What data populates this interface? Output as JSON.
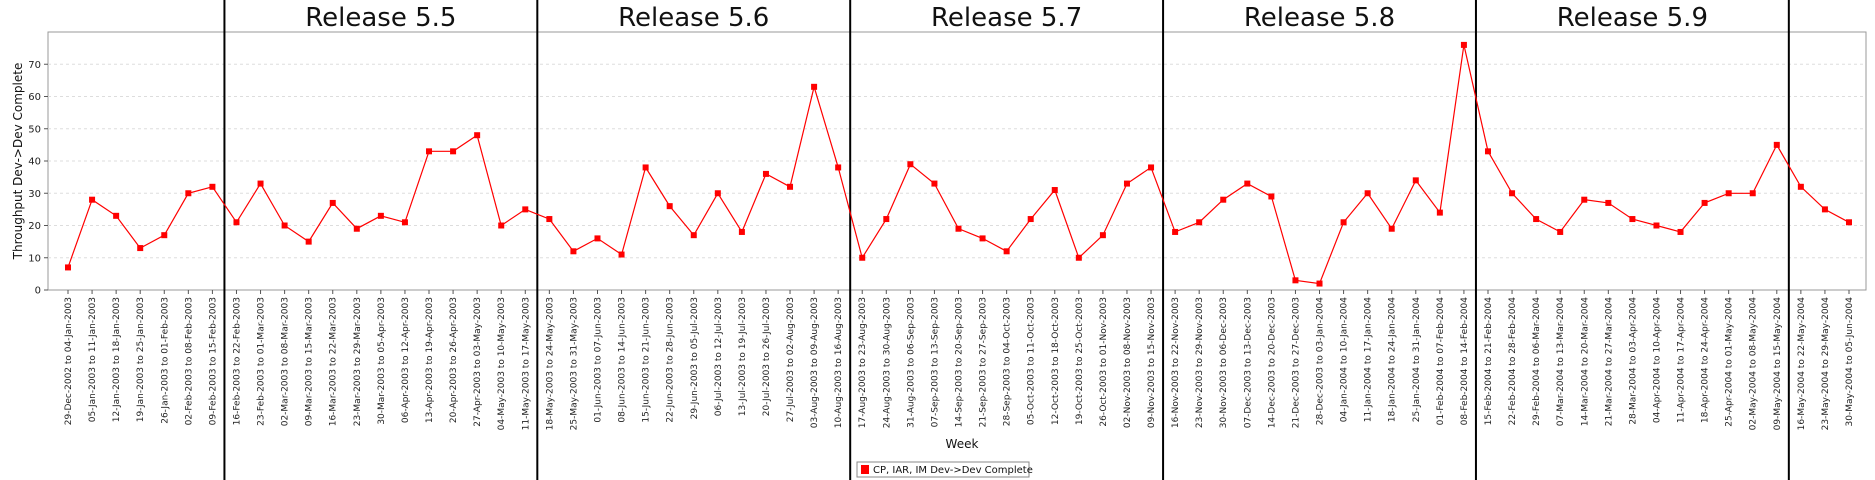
{
  "chart_data": {
    "type": "line",
    "ylabel": "Throughput Dev->Dev Complete",
    "xlabel": "Week",
    "ylim": [
      0,
      80
    ],
    "yticks": [
      0,
      10,
      20,
      30,
      40,
      50,
      60,
      70
    ],
    "grid": "horizontal dashed",
    "legend_position": "bottom-center",
    "colors": {
      "series": "#ff0000",
      "release_line": "#000000",
      "grid": "#dddddd"
    },
    "categories": [
      "29-Dec-2002 to 04-Jan-2003",
      "05-Jan-2003 to 11-Jan-2003",
      "12-Jan-2003 to 18-Jan-2003",
      "19-Jan-2003 to 25-Jan-2003",
      "26-Jan-2003 to 01-Feb-2003",
      "02-Feb-2003 to 08-Feb-2003",
      "09-Feb-2003 to 15-Feb-2003",
      "16-Feb-2003 to 22-Feb-2003",
      "23-Feb-2003 to 01-Mar-2003",
      "02-Mar-2003 to 08-Mar-2003",
      "09-Mar-2003 to 15-Mar-2003",
      "16-Mar-2003 to 22-Mar-2003",
      "23-Mar-2003 to 29-Mar-2003",
      "30-Mar-2003 to 05-Apr-2003",
      "06-Apr-2003 to 12-Apr-2003",
      "13-Apr-2003 to 19-Apr-2003",
      "20-Apr-2003 to 26-Apr-2003",
      "27-Apr-2003 to 03-May-2003",
      "04-May-2003 to 10-May-2003",
      "11-May-2003 to 17-May-2003",
      "18-May-2003 to 24-May-2003",
      "25-May-2003 to 31-May-2003",
      "01-Jun-2003 to 07-Jun-2003",
      "08-Jun-2003 to 14-Jun-2003",
      "15-Jun-2003 to 21-Jun-2003",
      "22-Jun-2003 to 28-Jun-2003",
      "29-Jun-2003 to 05-Jul-2003",
      "06-Jul-2003 to 12-Jul-2003",
      "13-Jul-2003 to 19-Jul-2003",
      "20-Jul-2003 to 26-Jul-2003",
      "27-Jul-2003 to 02-Aug-2003",
      "03-Aug-2003 to 09-Aug-2003",
      "10-Aug-2003 to 16-Aug-2003",
      "17-Aug-2003 to 23-Aug-2003",
      "24-Aug-2003 to 30-Aug-2003",
      "31-Aug-2003 to 06-Sep-2003",
      "07-Sep-2003 to 13-Sep-2003",
      "14-Sep-2003 to 20-Sep-2003",
      "21-Sep-2003 to 27-Sep-2003",
      "28-Sep-2003 to 04-Oct-2003",
      "05-Oct-2003 to 11-Oct-2003",
      "12-Oct-2003 to 18-Oct-2003",
      "19-Oct-2003 to 25-Oct-2003",
      "26-Oct-2003 to 01-Nov-2003",
      "02-Nov-2003 to 08-Nov-2003",
      "09-Nov-2003 to 15-Nov-2003",
      "16-Nov-2003 to 22-Nov-2003",
      "23-Nov-2003 to 29-Nov-2003",
      "30-Nov-2003 to 06-Dec-2003",
      "07-Dec-2003 to 13-Dec-2003",
      "14-Dec-2003 to 20-Dec-2003",
      "21-Dec-2003 to 27-Dec-2003",
      "28-Dec-2003 to 03-Jan-2004",
      "04-Jan-2004 to 10-Jan-2004",
      "11-Jan-2004 to 17-Jan-2004",
      "18-Jan-2004 to 24-Jan-2004",
      "25-Jan-2004 to 31-Jan-2004",
      "01-Feb-2004 to 07-Feb-2004",
      "08-Feb-2004 to 14-Feb-2004",
      "15-Feb-2004 to 21-Feb-2004",
      "22-Feb-2004 to 28-Feb-2004",
      "29-Feb-2004 to 06-Mar-2004",
      "07-Mar-2004 to 13-Mar-2004",
      "14-Mar-2004 to 20-Mar-2004",
      "21-Mar-2004 to 27-Mar-2004",
      "28-Mar-2004 to 03-Apr-2004",
      "04-Apr-2004 to 10-Apr-2004",
      "11-Apr-2004 to 17-Apr-2004",
      "18-Apr-2004 to 24-Apr-2004",
      "25-Apr-2004 to 01-May-2004",
      "02-May-2004 to 08-May-2004",
      "09-May-2004 to 15-May-2004",
      "16-May-2004 to 22-May-2004",
      "23-May-2004 to 29-May-2004",
      "30-May-2004 to 05-Jun-2004"
    ],
    "series": [
      {
        "name": "CP, IAR, IM Dev->Dev Complete",
        "values": [
          7,
          28,
          23,
          13,
          17,
          30,
          32,
          21,
          33,
          20,
          15,
          27,
          19,
          23,
          21,
          43,
          43,
          48,
          20,
          25,
          22,
          12,
          16,
          11,
          38,
          26,
          17,
          30,
          18,
          36,
          32,
          63,
          38,
          10,
          22,
          39,
          33,
          19,
          16,
          12,
          22,
          31,
          10,
          17,
          33,
          38,
          18,
          21,
          28,
          33,
          29,
          3,
          2,
          21,
          30,
          19,
          34,
          24,
          76,
          43,
          30,
          22,
          18,
          28,
          27,
          22,
          20,
          18,
          27,
          30,
          30,
          45,
          32,
          25,
          21
        ]
      }
    ],
    "releases": [
      {
        "label": "Release 5.5",
        "start_week": "16-Feb-2003 to 22-Feb-2003",
        "end_week": "11-May-2003 to 17-May-2003"
      },
      {
        "label": "Release 5.6",
        "start_week": "18-May-2003 to 24-May-2003",
        "end_week": "10-Aug-2003 to 16-Aug-2003"
      },
      {
        "label": "Release 5.7",
        "start_week": "17-Aug-2003 to 23-Aug-2003",
        "end_week": "09-Nov-2003 to 15-Nov-2003"
      },
      {
        "label": "Release 5.8",
        "start_week": "16-Nov-2003 to 22-Nov-2003",
        "end_week": "08-Feb-2004 to 14-Feb-2004"
      },
      {
        "label": "Release 5.9",
        "start_week": "15-Feb-2004 to 21-Feb-2004",
        "end_week": "09-May-2004 to 15-May-2004"
      }
    ]
  }
}
